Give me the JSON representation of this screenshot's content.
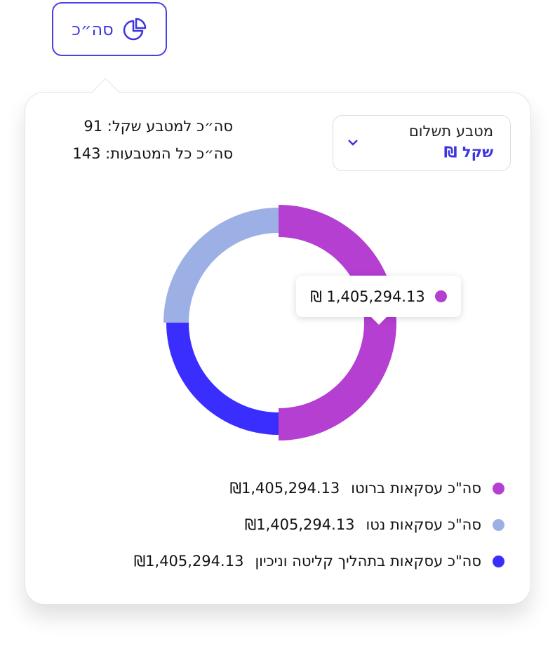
{
  "button": {
    "label": "סה״כ"
  },
  "summary": {
    "currency_label": "סה״כ למטבע שקל:",
    "currency_count": "91",
    "all_label": "סה״כ כל המטבעות:",
    "all_count": "143"
  },
  "dropdown": {
    "label": "מטבע תשלום",
    "value": "שקל ₪"
  },
  "tooltip": {
    "text": "₪ 1,405,294.13"
  },
  "legend_amounts": [
    "₪1,405,294.13",
    "₪1,405,294.13",
    "₪1,405,294.13"
  ],
  "chart_data": {
    "type": "pie",
    "donut": true,
    "categories": [
      "סה\"כ עסקאות ברוטו",
      "סה\"כ עסקאות בתהליך קליטה וניכיון",
      "סה\"כ עסקאות נטו"
    ],
    "values": [
      50,
      25,
      25
    ],
    "colors": [
      "#b43fd0",
      "#3a2eff",
      "#9db0e6"
    ]
  }
}
